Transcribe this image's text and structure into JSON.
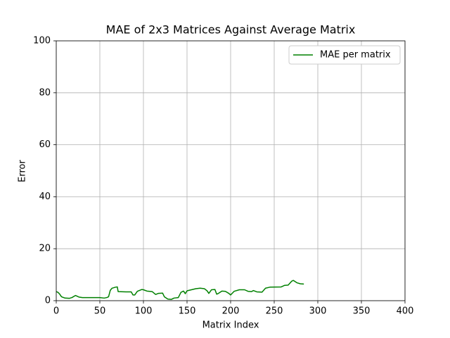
{
  "chart_data": {
    "type": "line",
    "title": "MAE of 2x3 Matrices Against Average Matrix",
    "x_label": "Matrix Index",
    "y_label": "Error",
    "x": [
      0,
      2,
      4,
      6,
      10,
      15,
      18,
      22,
      26,
      30,
      40,
      50,
      55,
      58,
      60,
      62,
      64,
      68,
      70,
      71,
      80,
      86,
      88,
      90,
      93,
      98,
      100,
      104,
      110,
      114,
      117,
      122,
      124,
      128,
      132,
      135,
      140,
      143,
      146,
      148,
      150,
      155,
      160,
      165,
      170,
      173,
      175,
      178,
      182,
      184,
      186,
      190,
      194,
      198,
      200,
      204,
      210,
      216,
      220,
      224,
      226,
      230,
      236,
      240,
      245,
      258,
      262,
      266,
      270,
      272,
      276,
      280,
      284
    ],
    "series": [
      {
        "name": "MAE per matrix",
        "color": "#008000",
        "values": [
          3.5,
          3.2,
          2.5,
          1.5,
          1.0,
          0.9,
          1.2,
          2.0,
          1.4,
          1.2,
          1.2,
          1.2,
          1.0,
          1.2,
          1.5,
          4.0,
          4.8,
          5.2,
          5.3,
          3.5,
          3.4,
          3.4,
          2.2,
          2.2,
          3.6,
          4.3,
          4.2,
          3.7,
          3.5,
          2.4,
          2.8,
          2.9,
          1.5,
          0.6,
          0.5,
          1.0,
          1.2,
          3.2,
          3.7,
          2.7,
          3.8,
          4.2,
          4.6,
          4.8,
          4.6,
          3.8,
          2.8,
          4.2,
          4.3,
          2.5,
          2.8,
          3.7,
          3.6,
          2.8,
          2.2,
          3.6,
          4.2,
          4.2,
          3.6,
          3.5,
          3.9,
          3.4,
          3.3,
          4.8,
          5.2,
          5.3,
          5.9,
          6.0,
          7.5,
          7.8,
          6.9,
          6.5,
          6.4
        ]
      }
    ],
    "xlim": [
      0,
      400
    ],
    "xticks": [
      0,
      50,
      100,
      150,
      200,
      250,
      300,
      350,
      400
    ],
    "ylim": [
      0,
      100
    ],
    "yticks": [
      0,
      20,
      40,
      60,
      80,
      100
    ],
    "grid": true,
    "legend": "upper right"
  }
}
